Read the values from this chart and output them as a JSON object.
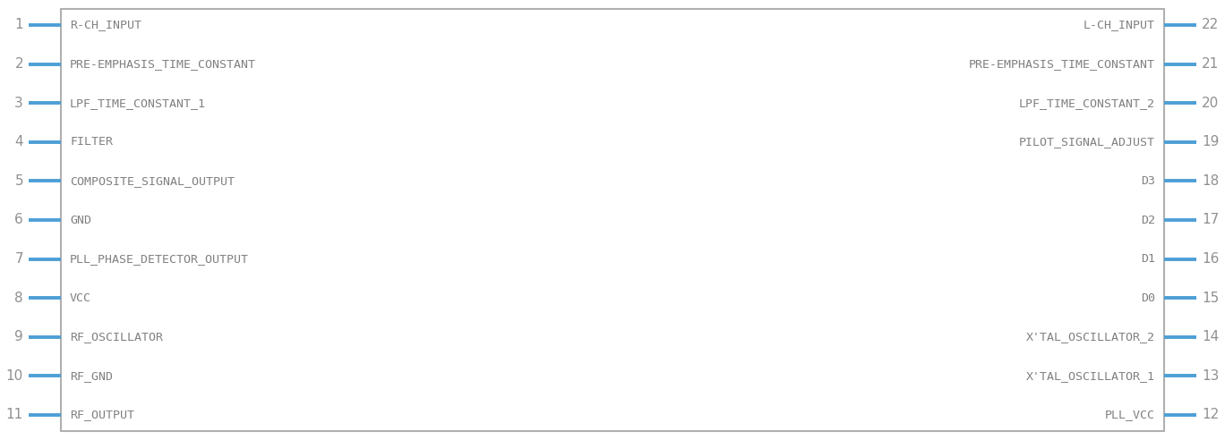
{
  "bg_color": "#ffffff",
  "box_color": "#b0b0b0",
  "box_fill": "#ffffff",
  "pin_color": "#4d9fd6",
  "text_color": "#808080",
  "num_color": "#909090",
  "left_pins": [
    1,
    2,
    3,
    4,
    5,
    6,
    7,
    8,
    9,
    10,
    11
  ],
  "right_pins": [
    22,
    21,
    20,
    19,
    18,
    17,
    16,
    15,
    14,
    13,
    12
  ],
  "left_labels": [
    "R-CH_INPUT",
    "PRE-EMPHASIS_TIME_CONSTANT",
    "LPF_TIME_CONSTANT_1",
    "FILTER",
    "COMPOSITE_SIGNAL_OUTPUT",
    "GND",
    "PLL_PHASE_DETECTOR_OUTPUT",
    "VCC",
    "RF_OSCILLATOR",
    "RF_GND",
    "RF_OUTPUT"
  ],
  "right_labels": [
    "L-CH_INPUT",
    "PRE-EMPHASIS_TIME_CONSTANT",
    "LPF_TIME_CONSTANT_2",
    "PILOT_SIGNAL_ADJUST",
    "D3",
    "D2",
    "D1",
    "D0",
    "X'TAL_OSCILLATOR_2",
    "X'TAL_OSCILLATOR_1",
    "PLL_VCC"
  ],
  "figsize": [
    13.68,
    4.92
  ],
  "dpi": 100
}
